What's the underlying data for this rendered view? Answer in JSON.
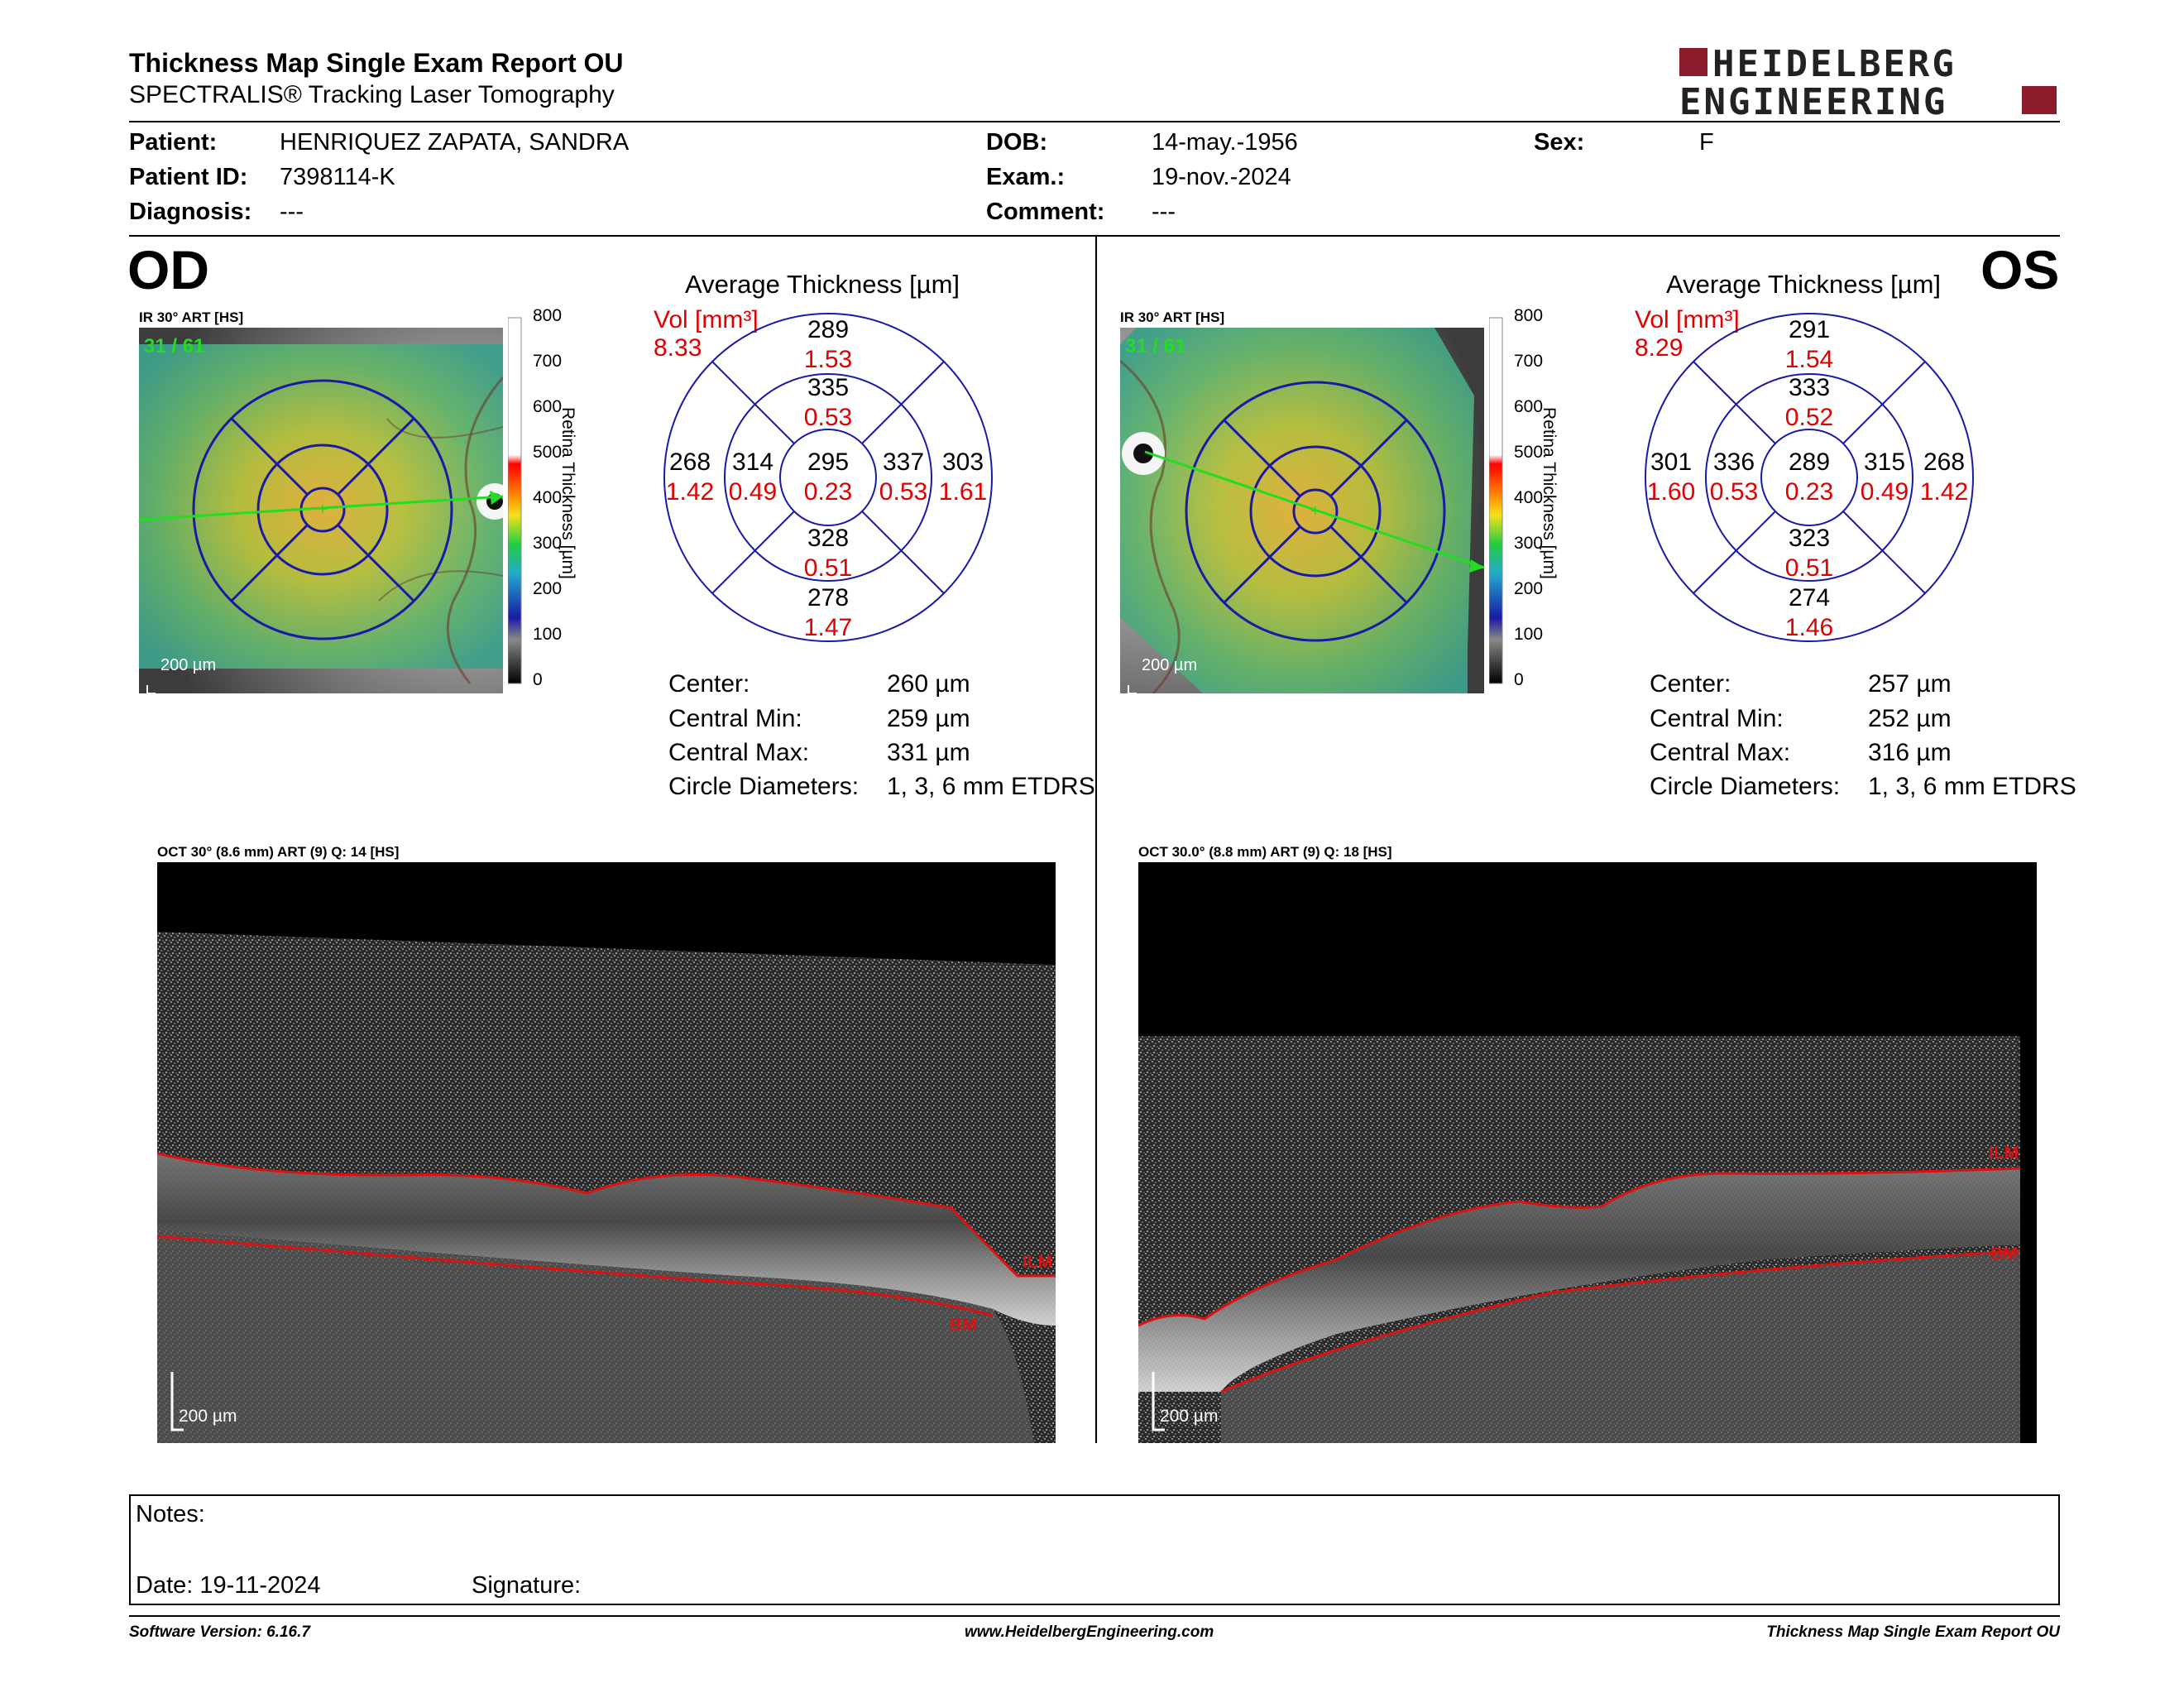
{
  "header": {
    "title": "Thickness Map Single Exam Report OU",
    "subtitle": "SPECTRALIS® Tracking Laser Tomography",
    "logo_line1": "HEIDELBERG",
    "logo_line2": "ENGINEERING"
  },
  "patient": {
    "patient_label": "Patient:",
    "patient_value": "HENRIQUEZ ZAPATA, SANDRA",
    "id_label": "Patient ID:",
    "id_value": "7398114-K",
    "diagnosis_label": "Diagnosis:",
    "diagnosis_value": "---",
    "dob_label": "DOB:",
    "dob_value": "14-may.-1956",
    "exam_label": "Exam.:",
    "exam_value": "19-nov.-2024",
    "comment_label": "Comment:",
    "comment_value": "---",
    "sex_label": "Sex:",
    "sex_value": "F"
  },
  "colorbar": {
    "ticks": [
      "800",
      "700",
      "600",
      "500",
      "400",
      "300",
      "200",
      "100",
      "0"
    ],
    "axis_label": "Retina  Thickness [µm]"
  },
  "od": {
    "eye": "OD",
    "ir_label": "IR 30° ART [HS]",
    "frames": "31 / 61",
    "scale": "200 µm",
    "avg_title": "Average Thickness [µm]",
    "vol_label": "Vol [mm³]",
    "vol_value": "8.33",
    "sectors": {
      "center_t": "295",
      "center_v": "0.23",
      "inner_sup_t": "335",
      "inner_sup_v": "0.53",
      "inner_inf_t": "328",
      "inner_inf_v": "0.51",
      "inner_left_t": "314",
      "inner_left_v": "0.49",
      "inner_right_t": "337",
      "inner_right_v": "0.53",
      "outer_sup_t": "289",
      "outer_sup_v": "1.53",
      "outer_inf_t": "278",
      "outer_inf_v": "1.47",
      "outer_left_t": "268",
      "outer_left_v": "1.42",
      "outer_right_t": "303",
      "outer_right_v": "1.61"
    },
    "stats": {
      "center_label": "Center:",
      "center_value": "260 µm",
      "min_label": "Central Min:",
      "min_value": "259 µm",
      "max_label": "Central Max:",
      "max_value": "331 µm",
      "diam_label": "Circle Diameters:",
      "diam_value": "1, 3, 6 mm ETDRS"
    },
    "oct_label": "OCT 30° (8.6 mm) ART (9) Q: 14 [HS]",
    "ilm": "ILM",
    "bm": "BM",
    "oct_scale": "200 µm"
  },
  "os": {
    "eye": "OS",
    "ir_label": "IR 30° ART [HS]",
    "frames": "31 / 61",
    "scale": "200 µm",
    "avg_title": "Average Thickness [µm]",
    "vol_label": "Vol [mm³]",
    "vol_value": "8.29",
    "sectors": {
      "center_t": "289",
      "center_v": "0.23",
      "inner_sup_t": "333",
      "inner_sup_v": "0.52",
      "inner_inf_t": "323",
      "inner_inf_v": "0.51",
      "inner_left_t": "336",
      "inner_left_v": "0.53",
      "inner_right_t": "315",
      "inner_right_v": "0.49",
      "outer_sup_t": "291",
      "outer_sup_v": "1.54",
      "outer_inf_t": "274",
      "outer_inf_v": "1.46",
      "outer_left_t": "301",
      "outer_left_v": "1.60",
      "outer_right_t": "268",
      "outer_right_v": "1.42"
    },
    "stats": {
      "center_label": "Center:",
      "center_value": "257 µm",
      "min_label": "Central Min:",
      "min_value": "252 µm",
      "max_label": "Central Max:",
      "max_value": "316 µm",
      "diam_label": "Circle Diameters:",
      "diam_value": "1, 3, 6 mm ETDRS"
    },
    "oct_label": "OCT 30.0° (8.8 mm) ART (9) Q: 18 [HS]",
    "ilm": "ILM",
    "bm": "BM",
    "oct_scale": "200 µm"
  },
  "notes": {
    "notes_label": "Notes:",
    "date_label": "Date: 19-11-2024",
    "signature_label": "Signature:"
  },
  "footer": {
    "version": "Software Version: 6.16.7",
    "website": "www.HeidelbergEngineering.com",
    "report_name": "Thickness Map Single Exam Report OU"
  },
  "colors": {
    "brand": "#8b1a2b",
    "sector_lines": "#1a1aa6",
    "volume_red": "#e00000",
    "ilm_line": "#cc1111",
    "scan_line": "#22dd22"
  }
}
